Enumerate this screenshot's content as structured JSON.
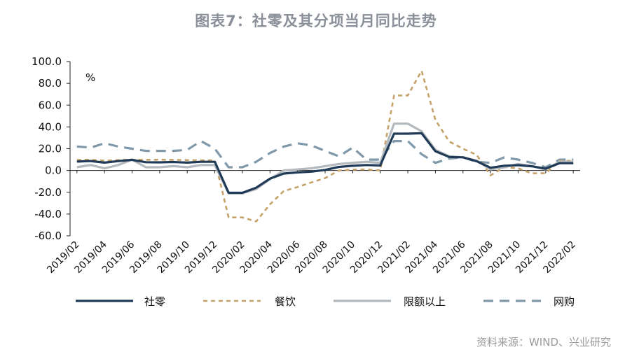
{
  "title": "图表7：社零及其分项当月同比走势",
  "source": "资料来源：WIND、兴业研究",
  "chart_data": {
    "type": "line",
    "unit": "%",
    "ylim": [
      -60,
      100
    ],
    "yticks": [
      "100.0",
      "80.0",
      "60.0",
      "40.0",
      "20.0",
      "0.0",
      "-20.0",
      "-40.0",
      "-60.0"
    ],
    "ytick_values": [
      100,
      80,
      60,
      40,
      20,
      0,
      -20,
      -40,
      -60
    ],
    "x": [
      "2019/02",
      "2019/03",
      "2019/04",
      "2019/05",
      "2019/06",
      "2019/07",
      "2019/08",
      "2019/09",
      "2019/10",
      "2019/11",
      "2019/12",
      "2020/01",
      "2020/02",
      "2020/03",
      "2020/04",
      "2020/05",
      "2020/06",
      "2020/07",
      "2020/08",
      "2020/09",
      "2020/10",
      "2020/11",
      "2020/12",
      "2021/01",
      "2021/02",
      "2021/03",
      "2021/04",
      "2021/05",
      "2021/06",
      "2021/07",
      "2021/08",
      "2021/09",
      "2021/10",
      "2021/11",
      "2021/12",
      "2022/01",
      "2022/02"
    ],
    "xtick_labels": [
      "2019/02",
      "2019/04",
      "2019/06",
      "2019/08",
      "2019/10",
      "2019/12",
      "2020/02",
      "2020/04",
      "2020/06",
      "2020/08",
      "2020/10",
      "2020/12",
      "2021/02",
      "2021/04",
      "2021/06",
      "2021/08",
      "2021/10",
      "2021/12",
      "2022/02"
    ],
    "legend_placement": "bottom",
    "series": [
      {
        "name": "社零",
        "color": "#1f3b57",
        "dash": "solid",
        "width": 3.2,
        "values": [
          8.2,
          8.7,
          7.2,
          8.6,
          9.8,
          7.6,
          7.5,
          7.8,
          7.2,
          8.0,
          8.0,
          -20.5,
          -20.5,
          -15.8,
          -7.5,
          -2.8,
          -1.8,
          -1.1,
          0.5,
          3.3,
          4.3,
          5.0,
          4.6,
          33.8,
          33.8,
          34.2,
          17.7,
          12.4,
          12.1,
          8.5,
          2.5,
          4.4,
          4.9,
          3.9,
          1.7,
          6.7,
          6.7
        ]
      },
      {
        "name": "餐饮",
        "color": "#c4a26a",
        "dash": "6,5",
        "width": 2.6,
        "values": [
          9.7,
          9.9,
          9.0,
          9.5,
          10.0,
          9.8,
          9.9,
          9.8,
          9.5,
          9.4,
          9.4,
          -43.1,
          -43.1,
          -46.8,
          -31.1,
          -18.9,
          -15.2,
          -11.0,
          -7.0,
          0.0,
          0.8,
          1.0,
          -0.0,
          68.9,
          68.9,
          91.6,
          46.4,
          26.6,
          20.0,
          14.3,
          -4.5,
          3.1,
          2.0,
          -2.7,
          -2.5,
          8.9,
          8.9
        ]
      },
      {
        "name": "限额以上",
        "color": "#b4b9bd",
        "dash": "solid",
        "width": 3.2,
        "values": [
          3.0,
          5.0,
          2.0,
          5.0,
          10.0,
          3.0,
          3.0,
          4.0,
          3.0,
          5.0,
          5.0,
          -21.0,
          -21.0,
          -17.0,
          -8.0,
          0.0,
          1.0,
          2.0,
          4.0,
          6.0,
          7.0,
          8.0,
          7.0,
          43.0,
          43.0,
          36.0,
          19.0,
          13.0,
          12.0,
          9.0,
          1.0,
          3.0,
          6.0,
          4.0,
          1.0,
          8.0,
          8.0
        ]
      },
      {
        "name": "网购",
        "color": "#7f99ab",
        "dash": "14,9",
        "width": 3.2,
        "values": [
          22.0,
          21.0,
          25.0,
          22.0,
          20.0,
          18.0,
          18.0,
          18.0,
          19.0,
          27.0,
          20.0,
          3.0,
          3.0,
          8.0,
          16.0,
          22.0,
          25.0,
          23.0,
          18.0,
          13.0,
          21.0,
          10.0,
          10.0,
          27.0,
          27.0,
          15.0,
          7.0,
          11.0,
          12.0,
          8.0,
          7.0,
          12.0,
          10.0,
          7.0,
          3.0,
          10.0,
          10.0
        ]
      }
    ]
  }
}
